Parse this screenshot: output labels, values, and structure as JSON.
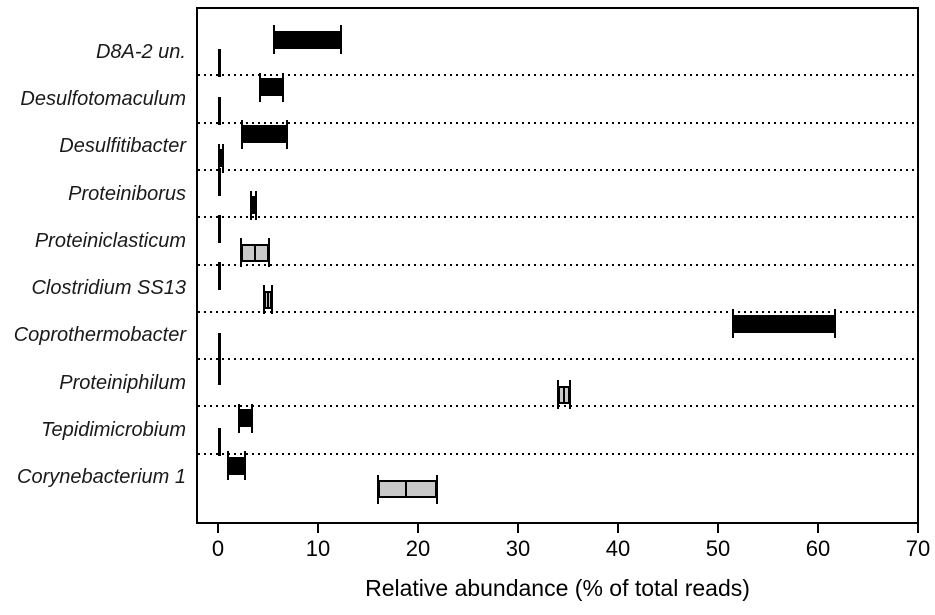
{
  "chart_data": {
    "type": "range_bar",
    "orientation": "horizontal",
    "xlabel": "Relative abundance (% of total reads)",
    "xlim": [
      0,
      70
    ],
    "xticks": [
      0,
      10,
      20,
      30,
      40,
      50,
      60,
      70
    ],
    "grid": "dotted horizontal separator lines between taxa",
    "legend": "none",
    "colors": {
      "black_bar": "#000000",
      "gray_bar": "#c9c9c9",
      "frame": "#000000"
    },
    "note": "Each taxon has two range bars (upper and lower row); ranges shown with end caps; gray bars carry a center divider line",
    "taxa": [
      {
        "label": "D8A-2 un.",
        "bars": [
          {
            "range": [
              5.6,
              12.3
            ],
            "color": "black"
          },
          {
            "range": [
              0.1,
              0.1
            ],
            "color": "black"
          }
        ]
      },
      {
        "label": "Desulfotomaculum",
        "bars": [
          {
            "range": [
              4.2,
              6.5
            ],
            "color": "black"
          },
          {
            "range": [
              0.1,
              0.1
            ],
            "color": "black"
          }
        ]
      },
      {
        "label": "Desulfitibacter",
        "bars": [
          {
            "range": [
              2.4,
              6.9
            ],
            "color": "black"
          },
          {
            "range": [
              0.1,
              0.5
            ],
            "color": "black"
          }
        ]
      },
      {
        "label": "Proteiniborus",
        "bars": [
          {
            "range": [
              0.1,
              0.1
            ],
            "color": "black"
          },
          {
            "range": [
              3.3,
              3.8
            ],
            "color": "black"
          }
        ]
      },
      {
        "label": "Proteiniclasticum",
        "bars": [
          {
            "range": [
              0.1,
              0.1
            ],
            "color": "black"
          },
          {
            "range": [
              2.3,
              5.1
            ],
            "color": "gray",
            "mid": 3.7
          }
        ]
      },
      {
        "label": "Clostridium SS13",
        "bars": [
          {
            "range": [
              0.1,
              0.2
            ],
            "color": "black"
          },
          {
            "range": [
              4.6,
              5.4
            ],
            "color": "gray",
            "mid": 5.0
          }
        ]
      },
      {
        "label": "Coprothermobacter",
        "bars": [
          {
            "range": [
              51.5,
              61.7
            ],
            "color": "black"
          },
          {
            "range": [
              0.1,
              0.1
            ],
            "color": "black"
          }
        ]
      },
      {
        "label": "Proteiniphilum",
        "bars": [
          {
            "range": [
              0.1,
              0.1
            ],
            "color": "black"
          },
          {
            "range": [
              34.0,
              35.2
            ],
            "color": "gray",
            "mid": 34.6
          }
        ]
      },
      {
        "label": "Tepidimicrobium",
        "bars": [
          {
            "range": [
              2.1,
              3.4
            ],
            "color": "black"
          },
          {
            "range": [
              0.1,
              0.1
            ],
            "color": "black"
          }
        ]
      },
      {
        "label": "Corynebacterium 1",
        "bars": [
          {
            "range": [
              1.0,
              2.7
            ],
            "color": "black"
          },
          {
            "range": [
              16.0,
              21.9
            ],
            "color": "gray",
            "mid": 18.8
          }
        ]
      }
    ]
  }
}
